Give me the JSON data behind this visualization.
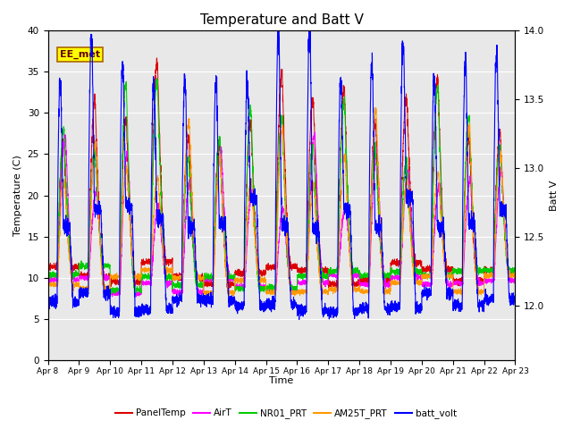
{
  "title": "Temperature and Batt V",
  "xlabel": "Time",
  "ylabel_left": "Temperature (C)",
  "ylabel_right": "Batt V",
  "ylim_left": [
    0,
    40
  ],
  "ylim_right": [
    11.6,
    14.0
  ],
  "x_tick_labels": [
    "Apr 8",
    "Apr 9",
    "Apr 10",
    "Apr 11",
    "Apr 12",
    "Apr 13",
    "Apr 14",
    "Apr 15",
    "Apr 16",
    "Apr 17",
    "Apr 18",
    "Apr 19",
    "Apr 20",
    "Apr 21",
    "Apr 22",
    "Apr 23"
  ],
  "legend_entries": [
    "PanelTemp",
    "AirT",
    "NR01_PRT",
    "AM25T_PRT",
    "batt_volt"
  ],
  "legend_colors": [
    "#dd0000",
    "#ff00ff",
    "#00cc00",
    "#ff9900",
    "#0000ff"
  ],
  "annotation_text": "EE_met",
  "annotation_box_color": "#ffff00",
  "annotation_box_edge": "#aa6600",
  "background_color": "#e8e8e8",
  "grid_color": "#ffffff",
  "title_fontsize": 11,
  "n_days": 15,
  "pts_per_day": 288
}
